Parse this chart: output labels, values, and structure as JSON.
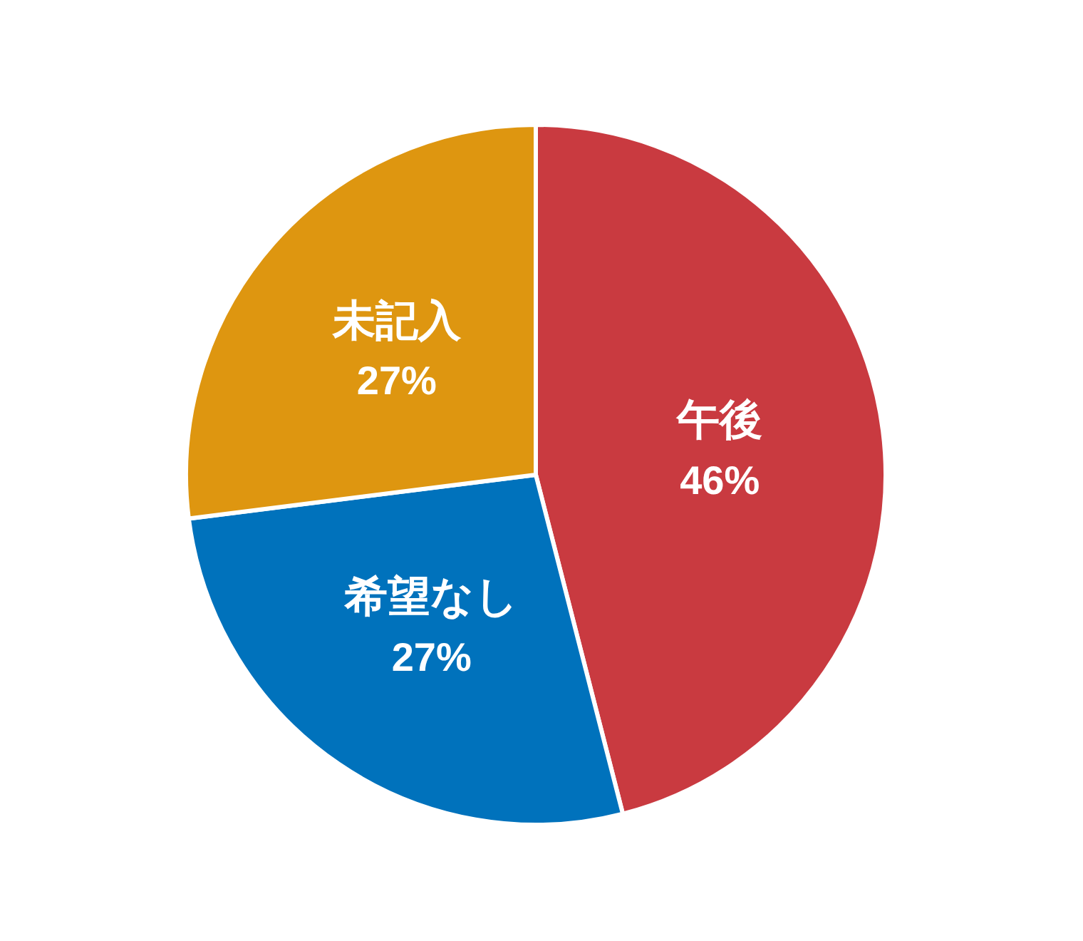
{
  "chart_data": {
    "type": "pie",
    "categories": [
      "午後",
      "希望なし",
      "未記入"
    ],
    "values": [
      46,
      27,
      27
    ],
    "colors": [
      "#c93a40",
      "#0072bc",
      "#de9610"
    ],
    "value_labels": [
      "46%",
      "27%",
      "27%"
    ],
    "legend": false
  }
}
